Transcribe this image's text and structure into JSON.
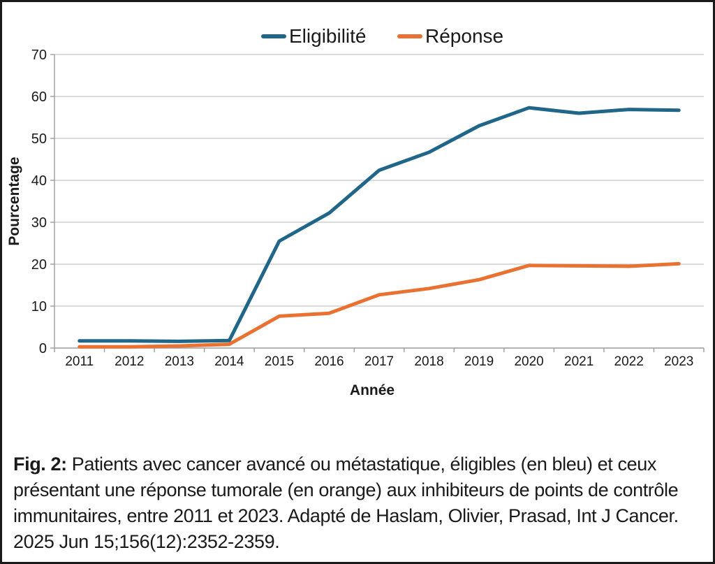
{
  "chart_data": {
    "type": "line",
    "title": "",
    "categories": [
      "2011",
      "2012",
      "2013",
      "2014",
      "2015",
      "2016",
      "2017",
      "2018",
      "2019",
      "2020",
      "2021",
      "2022",
      "2023"
    ],
    "series": [
      {
        "name": "Eligibilité",
        "color": "#1F6688",
        "values": [
          1.7,
          1.7,
          1.6,
          1.8,
          25.5,
          32.2,
          42.4,
          46.7,
          53.0,
          57.3,
          56.0,
          56.9,
          56.7
        ]
      },
      {
        "name": "Réponse",
        "color": "#E97132",
        "values": [
          0.3,
          0.3,
          0.5,
          0.9,
          7.6,
          8.3,
          12.7,
          14.2,
          16.3,
          19.7,
          19.6,
          19.5,
          20.1
        ]
      }
    ],
    "xlabel": "Année",
    "ylabel": "Pourcentage",
    "ylim": [
      0,
      70
    ],
    "yticks": [
      0,
      10,
      20,
      30,
      40,
      50,
      60,
      70
    ],
    "grid": "horizontal",
    "legend_position": "top-center"
  },
  "caption": {
    "label": "Fig. 2:",
    "text": "Patients avec cancer avancé ou métastatique, éligibles (en bleu) et ceux présentant une réponse tumorale (en orange) aux inhibiteurs de points de contrôle immunitaires, entre 2011 et 2023. Adapté de Haslam, Olivier, Prasad, Int J Cancer. 2025 Jun 15;156(12):2352-2359."
  },
  "colors": {
    "line_blue": "#1F6688",
    "line_orange": "#E97132",
    "gridline": "#C6C6C6",
    "axis": "#9C9C9C",
    "text": "#1A1A1A",
    "border": "#1A1A1A",
    "background": "#FFFFFF"
  }
}
